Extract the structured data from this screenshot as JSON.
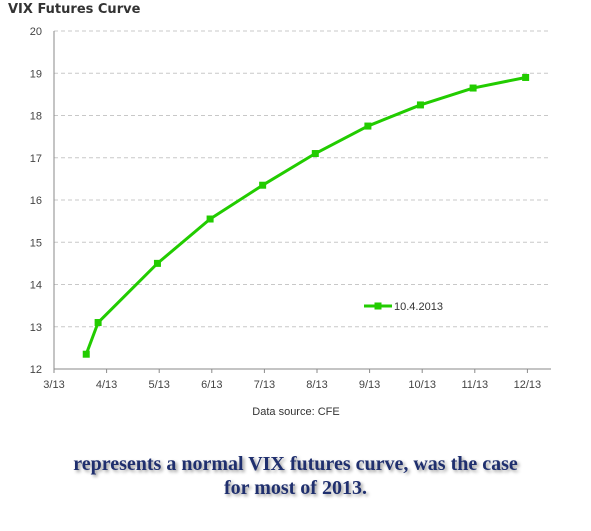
{
  "chart_data": {
    "type": "line",
    "title": "VIX Futures Curve",
    "xlabel": "",
    "ylabel": "",
    "x_ticks": [
      "3/13",
      "4/13",
      "5/13",
      "6/13",
      "7/13",
      "8/13",
      "9/13",
      "10/13",
      "11/13",
      "12/13"
    ],
    "y_ticks": [
      "12",
      "13",
      "14",
      "15",
      "16",
      "17",
      "18",
      "19",
      "20"
    ],
    "ylim": [
      12,
      20
    ],
    "grid": true,
    "legend_position": "center-right",
    "series": [
      {
        "name": "10.4.2013",
        "color": "#22cc00",
        "x": [
          "3/20/2013",
          "3/27/2013",
          "4/30/2013",
          "5/31/2013",
          "6/30/2013",
          "7/31/2013",
          "8/31/2013",
          "9/30/2013",
          "10/31/2013",
          "11/30/2013"
        ],
        "values": [
          12.35,
          13.1,
          14.5,
          15.55,
          16.35,
          17.1,
          17.75,
          18.25,
          18.65,
          18.9
        ]
      }
    ],
    "source_note": "Data source: CFE"
  },
  "caption": {
    "line1": "represents a normal VIX futures curve, was the case",
    "line2": "for most of 2013."
  }
}
